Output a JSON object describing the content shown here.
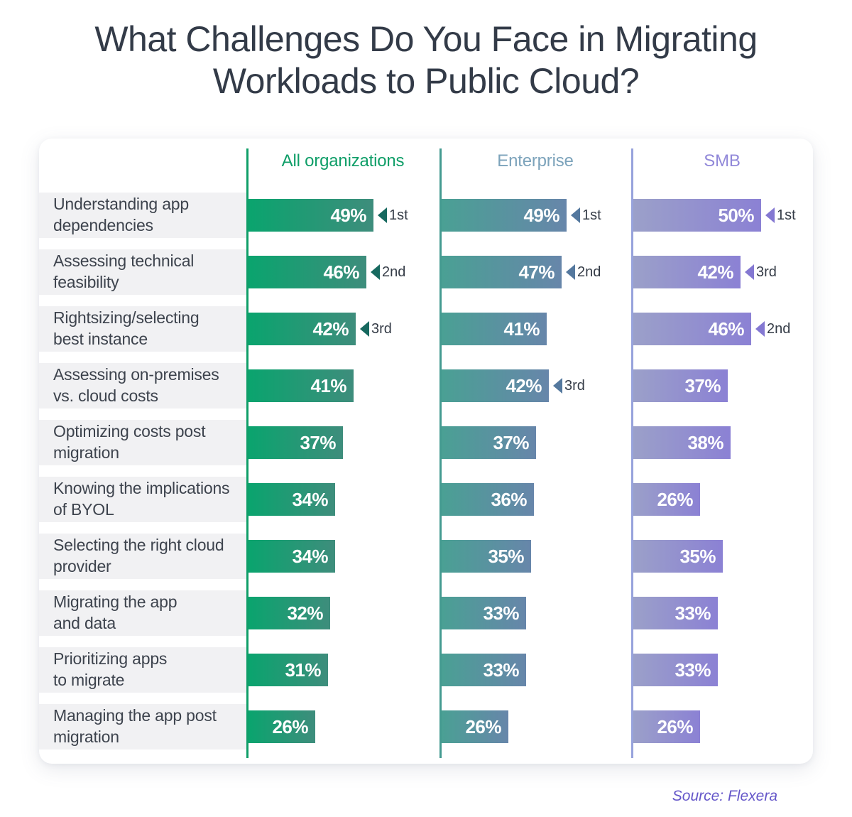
{
  "title": "What Challenges Do You Face in Migrating\nWorkloads to Public Cloud?",
  "source": "Source: Flexera",
  "chart_data": {
    "type": "bar",
    "orientation": "horizontal",
    "title": "What Challenges Do You Face in Migrating Workloads to Public Cloud?",
    "value_suffix": "%",
    "xlim": [
      0,
      52
    ],
    "grid": false,
    "legend_position": "top-column-headers",
    "categories": [
      "Understanding app\ndependencies",
      "Assessing technical\nfeasibility",
      "Rightsizing/selecting\nbest instance",
      "Assessing on-premises\nvs. cloud costs",
      "Optimizing costs post\nmigration",
      "Knowing the implications\nof BYOL",
      "Selecting the right cloud\nprovider",
      "Migrating the app\nand data",
      "Prioritizing apps\nto migrate",
      "Managing the app post\nmigration"
    ],
    "series": [
      {
        "name": "All organizations",
        "values": [
          49,
          46,
          42,
          41,
          37,
          34,
          34,
          32,
          31,
          26
        ],
        "ranks": [
          "1st",
          "2nd",
          "3rd",
          null,
          null,
          null,
          null,
          null,
          null,
          null
        ],
        "colors": {
          "header": "#0f9e68",
          "axis": "#0f9e68",
          "bar_left": "#0aa46e",
          "bar_right": "#3e8d7c",
          "marker": "#17695f"
        }
      },
      {
        "name": "Enterprise",
        "values": [
          49,
          47,
          41,
          42,
          37,
          36,
          35,
          33,
          33,
          26
        ],
        "ranks": [
          "1st",
          "2nd",
          null,
          "3rd",
          null,
          null,
          null,
          null,
          null,
          null
        ],
        "colors": {
          "header": "#7ca3bb",
          "axis": "#449a90",
          "bar_left": "#4aa094",
          "bar_right": "#6786aa",
          "marker": "#54789e"
        }
      },
      {
        "name": "SMB",
        "values": [
          50,
          42,
          46,
          37,
          38,
          26,
          35,
          33,
          33,
          26
        ],
        "ranks": [
          "1st",
          "3rd",
          "2nd",
          null,
          null,
          null,
          null,
          null,
          null,
          null
        ],
        "colors": {
          "header": "#9188d9",
          "axis": "#97a3dc",
          "bar_left": "#9ba0c9",
          "bar_right": "#8b81d4",
          "marker": "#8478d2"
        }
      }
    ]
  }
}
